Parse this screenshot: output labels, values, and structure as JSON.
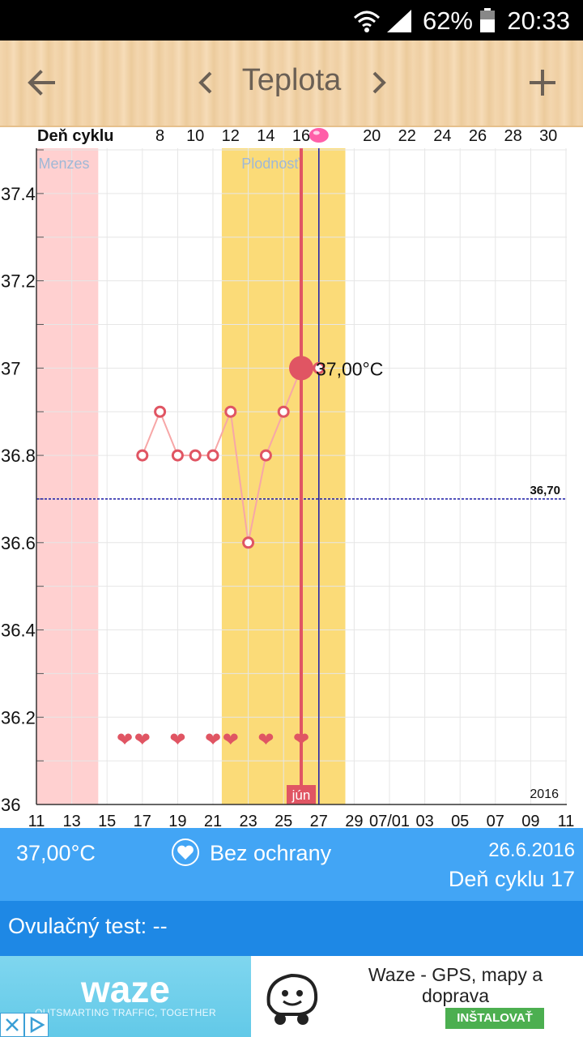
{
  "status_bar": {
    "battery_percent": "62%",
    "time": "20:33"
  },
  "toolbar": {
    "title": "Teplota"
  },
  "chart_data": {
    "type": "line",
    "top_axis_label": "Deň cyklu",
    "top_ticks": [
      "8",
      "10",
      "12",
      "14",
      "16",
      "",
      "20",
      "22",
      "24",
      "26",
      "28",
      "30"
    ],
    "x_ticks": [
      "11",
      "13",
      "15",
      "17",
      "19",
      "21",
      "23",
      "25",
      "27",
      "29",
      "07/01",
      "03",
      "05",
      "07",
      "09",
      "11"
    ],
    "y_ticks": [
      "37.4",
      "37.2",
      "37",
      "36.8",
      "36.6",
      "36.4",
      "36.2",
      "36"
    ],
    "ylim": [
      36,
      37.5
    ],
    "series": [
      {
        "x": [
          7,
          8,
          9,
          10,
          11,
          12,
          13,
          14,
          15,
          16,
          17
        ],
        "y": [
          36.8,
          36.9,
          36.8,
          36.8,
          36.8,
          36.9,
          36.6,
          36.8,
          36.9,
          37.0,
          37.0
        ]
      }
    ],
    "intercourse_days": [
      6,
      7,
      9,
      11,
      12,
      14,
      16
    ],
    "periods": [
      {
        "label": "Menzes",
        "start_day": 1,
        "end_day": 4,
        "color": "#ffd0d0"
      },
      {
        "label": "Plodnosť",
        "start_day": 12,
        "end_day": 18,
        "color": "#fbdb78"
      }
    ],
    "cover_line": {
      "value": 36.7,
      "label": "36,70"
    },
    "selected": {
      "day": 16,
      "value_label": "37,00°C",
      "month_label": "jún"
    },
    "ovulation_day": 17,
    "year_label": "2016",
    "colors": {
      "line": "#f7a7a7",
      "marker": "#e05563",
      "cover": "#1a1aa8",
      "ovulation": "#1a1aa8"
    }
  },
  "info": {
    "temperature": "37,00°C",
    "protection": "Bez ochrany",
    "date": "26.6.2016",
    "cycle_day": "Deň cyklu 17"
  },
  "ovulation_test": {
    "label": "Ovulačný test: --"
  },
  "ad": {
    "brand": "waze",
    "tagline": "OUTSMARTING TRAFFIC, TOGETHER",
    "app_name": "Waze - GPS, mapy a doprava",
    "install_label": "INŠTALOVAŤ"
  }
}
